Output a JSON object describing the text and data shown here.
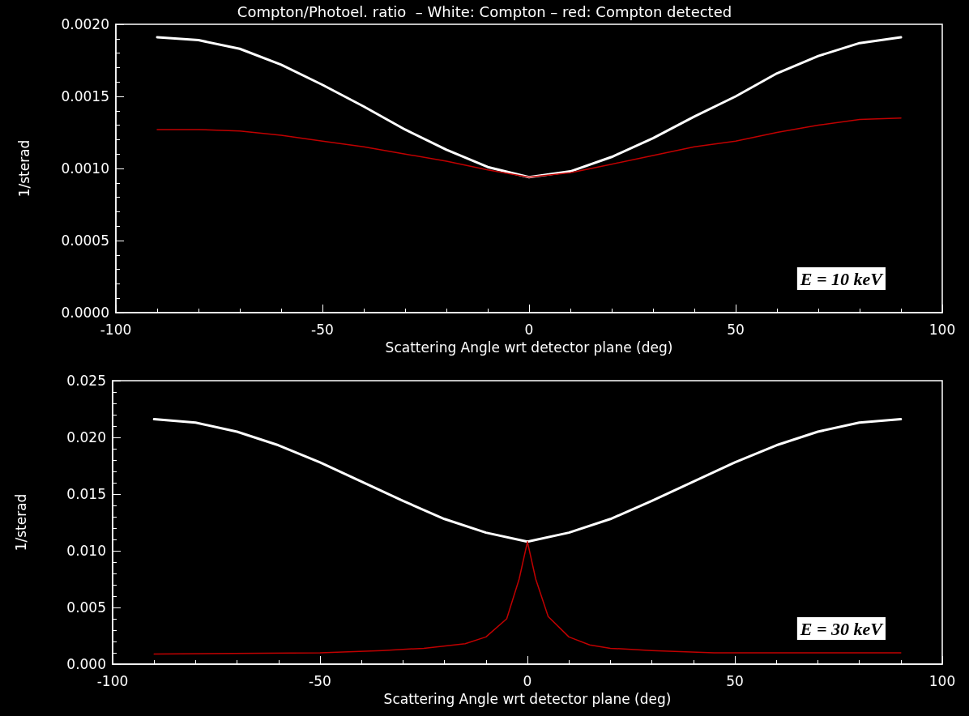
{
  "chart_data": [
    {
      "type": "line",
      "title": "Compton/Photoel. ratio  – White: Compton – red: Compton detected",
      "xlabel": "Scattering Angle wrt detector plane (deg)",
      "ylabel": "1/sterad",
      "annotations": [
        "E = 10 keV"
      ],
      "xlim": [
        -100,
        100
      ],
      "xticks": [
        -100,
        -50,
        0,
        50,
        100
      ],
      "ylim": [
        0,
        0.002
      ],
      "yticks": [
        {
          "value": 0,
          "label": "0.0000"
        },
        {
          "value": 0.0005,
          "label": "0.0005"
        },
        {
          "value": 0.001,
          "label": "0.0010"
        },
        {
          "value": 0.0015,
          "label": "0.0015"
        },
        {
          "value": 0.002,
          "label": "0.0020"
        }
      ],
      "grid": false,
      "legend": false,
      "marker": "none",
      "line_style": "solid",
      "series": [
        {
          "color": "#ffffff",
          "x": [
            -90,
            -80,
            -70,
            -60,
            -50,
            -40,
            -30,
            -20,
            -10,
            0,
            10,
            20,
            30,
            40,
            50,
            60,
            70,
            80,
            90
          ],
          "values": [
            0.00191,
            0.00189,
            0.00183,
            0.00172,
            0.00158,
            0.00143,
            0.00127,
            0.00113,
            0.00101,
            0.00094,
            0.00098,
            0.00108,
            0.00121,
            0.00136,
            0.0015,
            0.00166,
            0.00178,
            0.00187,
            0.00191
          ]
        },
        {
          "color": "#c00000",
          "x": [
            -90,
            -80,
            -70,
            -60,
            -50,
            -40,
            -30,
            -20,
            -10,
            0,
            10,
            20,
            30,
            40,
            50,
            60,
            70,
            80,
            90
          ],
          "values": [
            0.00127,
            0.00127,
            0.00126,
            0.00123,
            0.00119,
            0.00115,
            0.0011,
            0.00105,
            0.00099,
            0.00094,
            0.00097,
            0.00103,
            0.00109,
            0.00115,
            0.00119,
            0.00125,
            0.0013,
            0.00134,
            0.00135
          ]
        }
      ]
    },
    {
      "type": "line",
      "xlabel": "Scattering Angle wrt detector plane (deg)",
      "ylabel": "1/sterad",
      "annotations": [
        "E = 30 keV"
      ],
      "xlim": [
        -100,
        100
      ],
      "xticks": [
        -100,
        -50,
        0,
        50,
        100
      ],
      "ylim": [
        0,
        0.025
      ],
      "yticks": [
        {
          "value": 0,
          "label": "0.000"
        },
        {
          "value": 0.005,
          "label": "0.005"
        },
        {
          "value": 0.01,
          "label": "0.010"
        },
        {
          "value": 0.015,
          "label": "0.015"
        },
        {
          "value": 0.02,
          "label": "0.020"
        },
        {
          "value": 0.025,
          "label": "0.025"
        }
      ],
      "grid": false,
      "legend": false,
      "marker": "none",
      "line_style": "solid",
      "series": [
        {
          "color": "#ffffff",
          "x": [
            -90,
            -80,
            -70,
            -60,
            -50,
            -40,
            -30,
            -20,
            -10,
            0,
            10,
            20,
            30,
            40,
            50,
            60,
            70,
            80,
            90
          ],
          "values": [
            0.0216,
            0.0213,
            0.0205,
            0.0193,
            0.0178,
            0.0161,
            0.0144,
            0.0128,
            0.0116,
            0.0108,
            0.0116,
            0.0128,
            0.0144,
            0.0161,
            0.0178,
            0.0193,
            0.0205,
            0.0213,
            0.0216
          ]
        },
        {
          "color": "#c00000",
          "x": [
            -90,
            -50,
            -35,
            -25,
            -15,
            -10,
            -5,
            -2,
            0,
            2,
            5,
            10,
            15,
            20,
            30,
            45,
            90
          ],
          "values": [
            0.0009,
            0.001,
            0.0012,
            0.0014,
            0.0018,
            0.0024,
            0.004,
            0.0075,
            0.0108,
            0.0075,
            0.0042,
            0.0024,
            0.0017,
            0.0014,
            0.0012,
            0.001,
            0.001
          ]
        }
      ]
    }
  ]
}
